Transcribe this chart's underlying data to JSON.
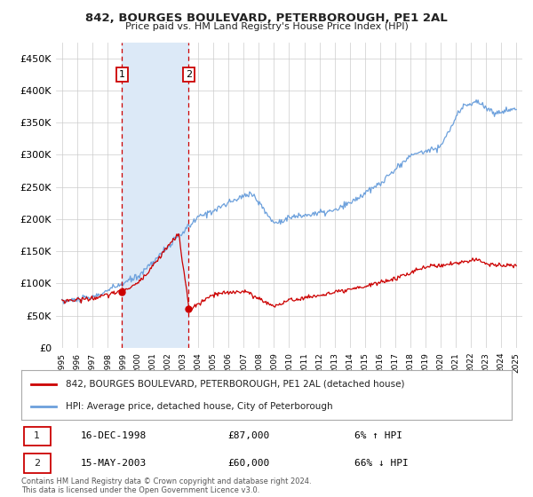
{
  "title": "842, BOURGES BOULEVARD, PETERBOROUGH, PE1 2AL",
  "subtitle": "Price paid vs. HM Land Registry's House Price Index (HPI)",
  "legend_line1": "842, BOURGES BOULEVARD, PETERBOROUGH, PE1 2AL (detached house)",
  "legend_line2": "HPI: Average price, detached house, City of Peterborough",
  "footer": "Contains HM Land Registry data © Crown copyright and database right 2024.\nThis data is licensed under the Open Government Licence v3.0.",
  "transaction1_date": "16-DEC-1998",
  "transaction1_price": "£87,000",
  "transaction1_hpi": "6% ↑ HPI",
  "transaction2_date": "15-MAY-2003",
  "transaction2_price": "£60,000",
  "transaction2_hpi": "66% ↓ HPI",
  "hpi_color": "#6ca0dc",
  "price_paid_color": "#cc0000",
  "transaction_dot_color": "#cc0000",
  "shade_color": "#dce9f7",
  "dashed_line_color": "#cc0000",
  "grid_color": "#cccccc",
  "background_color": "#ffffff",
  "ylim": [
    0,
    475000
  ],
  "yticks": [
    0,
    50000,
    100000,
    150000,
    200000,
    250000,
    300000,
    350000,
    400000,
    450000
  ],
  "ytick_labels": [
    "£0",
    "£50K",
    "£100K",
    "£150K",
    "£200K",
    "£250K",
    "£300K",
    "£350K",
    "£400K",
    "£450K"
  ],
  "transaction1_x": 1998.96,
  "transaction1_y": 87000,
  "transaction2_x": 2003.37,
  "transaction2_y": 60000,
  "shade_x1": 1998.96,
  "shade_x2": 2003.37,
  "xlim_left": 1994.6,
  "xlim_right": 2025.4
}
